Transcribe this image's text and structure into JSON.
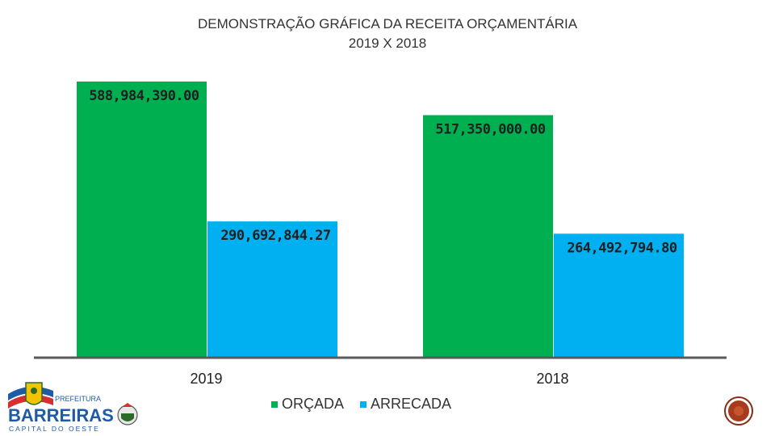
{
  "title": {
    "line1": "DEMONSTRAÇÃO GRÁFICA DA RECEITA ORÇAMENTÁRIA",
    "line2": "2019 X 2018"
  },
  "chart_data": {
    "type": "bar",
    "categories": [
      "2019",
      "2018"
    ],
    "series": [
      {
        "name": "ORÇADA",
        "values": [
          588984390.0,
          517350000.0
        ],
        "labels": [
          "588,984,390.00",
          "517,350,000.00"
        ],
        "color": "#00b050"
      },
      {
        "name": "ARRECADA",
        "values": [
          290692844.27,
          264492794.8
        ],
        "labels": [
          "290,692,844.27",
          "264,492,794.80"
        ],
        "color": "#00b0f0"
      }
    ],
    "ylim": [
      0,
      588984390.0
    ],
    "grid": false,
    "legend": "bottom-center"
  },
  "logo": {
    "top_text": "PREFEITURA",
    "name": "BARREIRAS",
    "tagline": "CAPITAL DO OESTE"
  },
  "icons": {
    "corner": "circle-badge-icon"
  }
}
